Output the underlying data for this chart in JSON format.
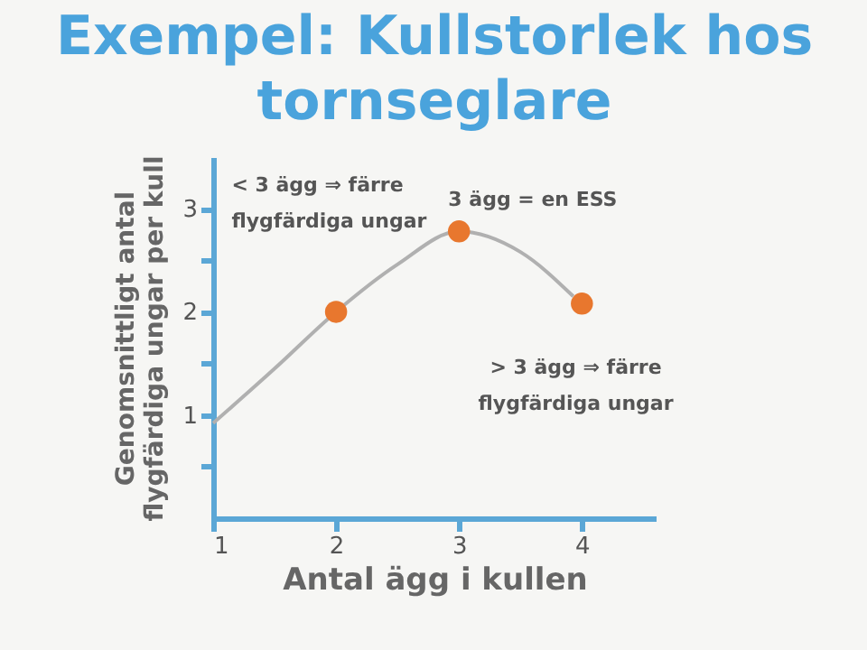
{
  "chart_data": {
    "type": "line",
    "title": "Exempel: Kullstorlek hos\ntornseglare",
    "xlabel": "Antal ägg i kullen",
    "ylabel": "Genomsnittligt antal\nflygfärdiga ungar per kull",
    "annotations": [
      "< 3 ägg ⇒ färre\nflygfärdiga ungar",
      "3 ägg = en ESS",
      "> 3 ägg ⇒ färre\nflygfärdiga ungar"
    ],
    "series": [
      {
        "color": "#b0b0b0",
        "x": [
          1,
          1.5,
          2,
          2.5,
          3,
          3.5,
          3.93
        ],
        "values": [
          0.92,
          1.45,
          2.0,
          2.46,
          2.78,
          2.58,
          2.15
        ],
        "marker": "none"
      },
      {
        "type": "scatter",
        "color": "#e8772e",
        "x": [
          2,
          3,
          4
        ],
        "values": [
          2.0,
          2.78,
          2.08
        ],
        "marker": "circle"
      }
    ],
    "xlim": [
      1,
      4.6
    ],
    "xticks": [
      1,
      2,
      3,
      4
    ],
    "ylim": [
      0,
      3.5
    ],
    "yticks": [
      {
        "value": 0.5,
        "label": null
      },
      1,
      {
        "value": 1.5,
        "label": null
      },
      2,
      {
        "value": 2.5,
        "label": null
      },
      3
    ],
    "grid": false
  }
}
